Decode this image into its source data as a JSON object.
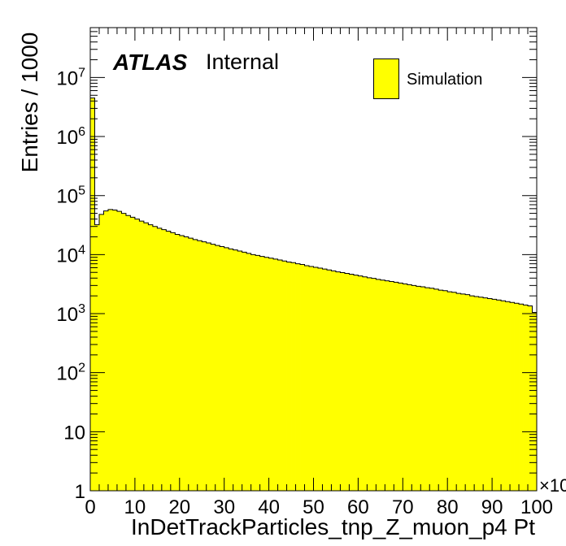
{
  "chart_data": {
    "type": "bar",
    "title": "",
    "xlabel": "InDetTrackParticles_tnp_Z_muon_p4 Pt",
    "ylabel": "Entries / 1000",
    "x_multiplier_label": "×10",
    "xlim": [
      0,
      100
    ],
    "ylim": [
      1,
      70000000
    ],
    "y_scale": "log",
    "x_ticks": [
      "0",
      "10",
      "20",
      "30",
      "40",
      "50",
      "60",
      "70",
      "80",
      "90",
      "100"
    ],
    "y_ticks": [
      {
        "value": 1,
        "base": "1",
        "exp": ""
      },
      {
        "value": 10,
        "base": "10",
        "exp": ""
      },
      {
        "value": 100,
        "base": "10",
        "exp": "2"
      },
      {
        "value": 1000,
        "base": "10",
        "exp": "3"
      },
      {
        "value": 10000,
        "base": "10",
        "exp": "4"
      },
      {
        "value": 100000,
        "base": "10",
        "exp": "5"
      },
      {
        "value": 1000000,
        "base": "10",
        "exp": "6"
      },
      {
        "value": 10000000,
        "base": "10",
        "exp": "7"
      }
    ],
    "bin_width": 1,
    "series": [
      {
        "name": "Simulation",
        "color": "#ffff00",
        "values": [
          4500000,
          32000,
          48000,
          55000,
          58000,
          57000,
          54000,
          50000,
          46000,
          43000,
          40000,
          37000,
          34500,
          32000,
          30000,
          28000,
          26500,
          25000,
          23500,
          22000,
          21000,
          20000,
          19000,
          18000,
          17200,
          16500,
          15800,
          15000,
          14300,
          13700,
          13100,
          12500,
          12000,
          11500,
          11000,
          10500,
          10000,
          9700,
          9300,
          9000,
          8700,
          8400,
          8100,
          7800,
          7500,
          7300,
          7000,
          6800,
          6500,
          6300,
          6100,
          5900,
          5700,
          5500,
          5300,
          5100,
          4950,
          4800,
          4650,
          4500,
          4350,
          4200,
          4050,
          3950,
          3800,
          3700,
          3600,
          3500,
          3400,
          3300,
          3200,
          3100,
          3000,
          2900,
          2850,
          2750,
          2700,
          2600,
          2500,
          2450,
          2350,
          2300,
          2200,
          2150,
          2100,
          2000,
          1950,
          1900,
          1850,
          1800,
          1750,
          1700,
          1650,
          1600,
          1550,
          1500,
          1450,
          1400,
          1350,
          1050
        ]
      }
    ],
    "legend_position": "top-right",
    "grid": false
  },
  "annotations": {
    "atlas": "ATLAS",
    "internal": "Internal"
  }
}
